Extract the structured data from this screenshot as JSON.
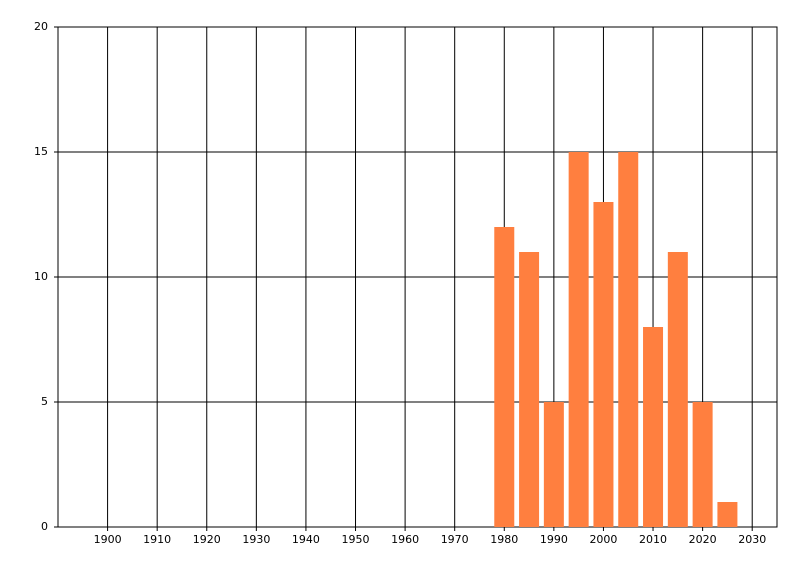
{
  "chart_data": {
    "type": "bar",
    "x": [
      1980,
      1985,
      1990,
      1995,
      2000,
      2005,
      2010,
      2015,
      2020,
      2025
    ],
    "values": [
      12,
      11,
      5,
      15,
      13,
      15,
      8,
      11,
      5,
      1
    ],
    "color": "#ff7f3f",
    "xlim": [
      1890,
      2035
    ],
    "xticks": [
      1900,
      1910,
      1920,
      1930,
      1940,
      1950,
      1960,
      1970,
      1980,
      1990,
      2000,
      2010,
      2020,
      2030
    ],
    "ylim": [
      0,
      20
    ],
    "yticks": [
      0,
      5,
      10,
      15,
      20
    ],
    "grid": true
  }
}
